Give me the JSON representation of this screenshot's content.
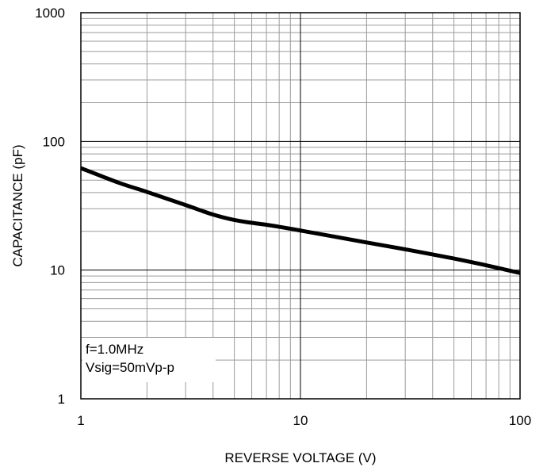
{
  "chart_data": {
    "type": "line",
    "title": "",
    "xlabel": "REVERSE VOLTAGE (V)",
    "ylabel": "CAPACITANCE (pF)",
    "xscale": "log",
    "yscale": "log",
    "xlim": [
      1,
      100
    ],
    "ylim": [
      1,
      1000
    ],
    "grid": true,
    "x_ticks": [
      "1",
      "10",
      "100"
    ],
    "y_ticks": [
      "1",
      "10",
      "100",
      "1000"
    ],
    "annotation_lines": [
      "f=1.0MHz",
      "Vsig=50mVp-p"
    ],
    "annotation_placement": "bottom-left",
    "series": [
      {
        "color": "#000000",
        "x": [
          1,
          1.5,
          2,
          3,
          4,
          5,
          6,
          7,
          8,
          10,
          20,
          30,
          50,
          70,
          100
        ],
        "y": [
          62,
          47.5,
          40.5,
          32,
          27,
          24.5,
          23.3,
          22.5,
          21.7,
          20.3,
          16.4,
          14.5,
          12.3,
          10.9,
          9.5
        ]
      }
    ]
  }
}
